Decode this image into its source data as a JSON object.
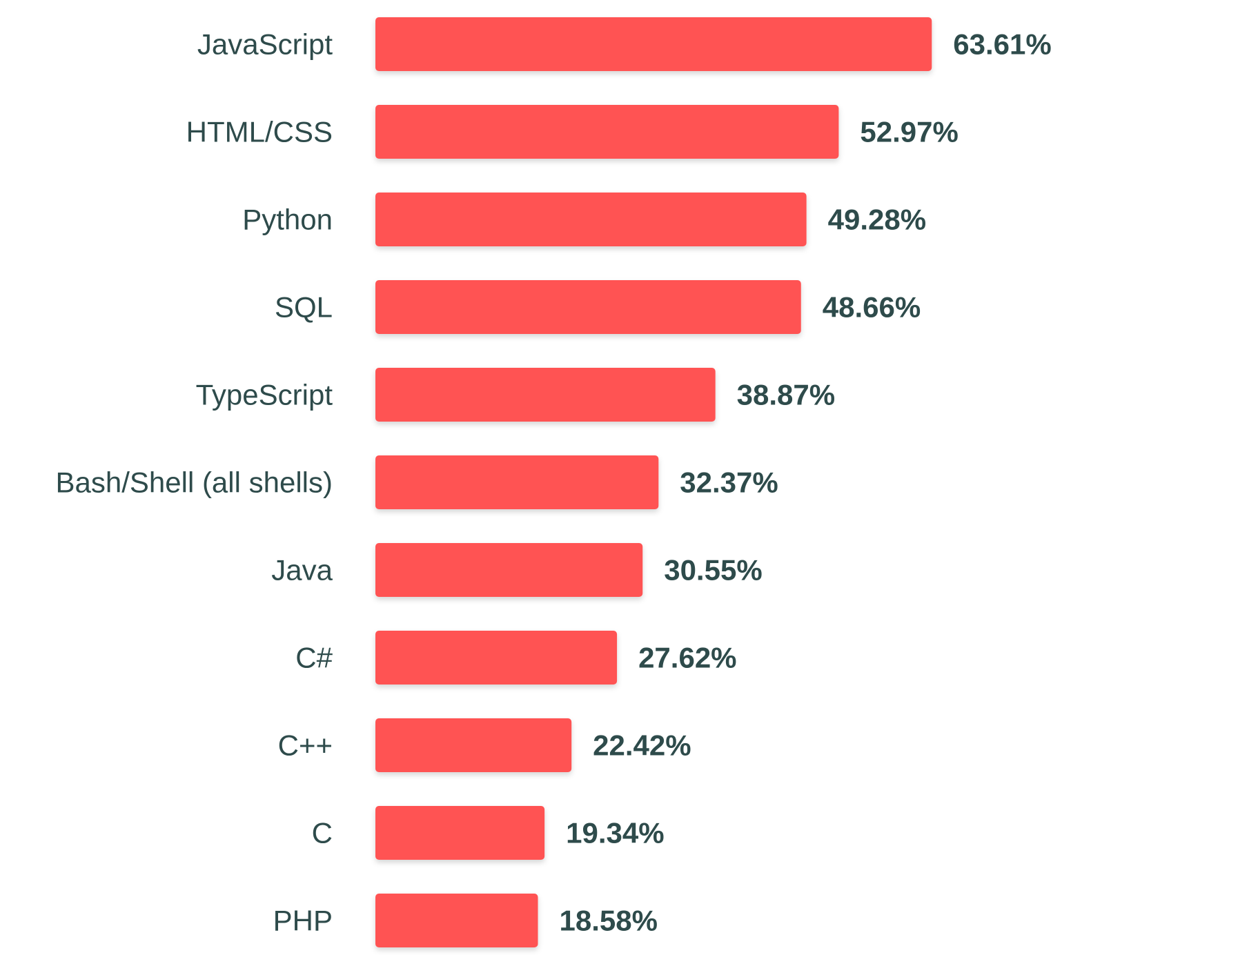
{
  "chart_data": {
    "type": "bar",
    "orientation": "horizontal",
    "categories": [
      "JavaScript",
      "HTML/CSS",
      "Python",
      "SQL",
      "TypeScript",
      "Bash/Shell (all shells)",
      "Java",
      "C#",
      "C++",
      "C",
      "PHP"
    ],
    "values": [
      63.61,
      52.97,
      49.28,
      48.66,
      38.87,
      32.37,
      30.55,
      27.62,
      22.42,
      19.34,
      18.58
    ],
    "value_labels": [
      "63.61%",
      "52.97%",
      "49.28%",
      "48.66%",
      "38.87%",
      "32.37%",
      "30.55%",
      "27.62%",
      "22.42%",
      "19.34%",
      "18.58%"
    ],
    "xlim": [
      0,
      100
    ],
    "grid": false,
    "bar_color": "#ff5252",
    "text_color": "#2e4b4b"
  }
}
